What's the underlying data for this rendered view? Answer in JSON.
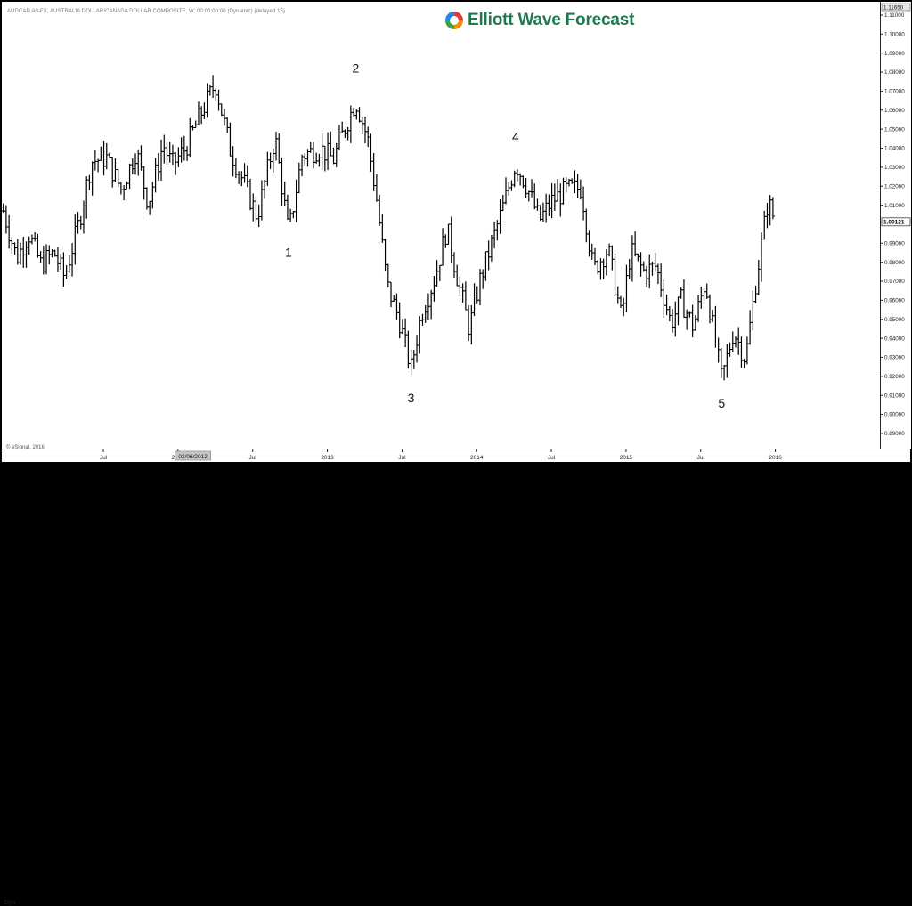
{
  "header": {
    "symbol_line": "AUDCAD A0-FX, AUSTRALIA DOLLAR/CANADA DOLLAR COMPOSITE, W, 00:00:00:00 (Dynamic) (delayed 15)",
    "logo_text": "Elliott Wave Forecast",
    "logo_colors": [
      "#e53935",
      "#fb8c00",
      "#43a047",
      "#1e88e5"
    ]
  },
  "footer": {
    "copyright": "© eSignal, 2016",
    "dyn_label": "Dyn"
  },
  "chart_data": {
    "type": "ohlc",
    "interval": "weekly",
    "series_color": "#000000",
    "y_tick_labels": [
      "1.11000",
      "1.10000",
      "1.09000",
      "1.08000",
      "1.07000",
      "1.06000",
      "1.05000",
      "1.04000",
      "1.03000",
      "1.02000",
      "1.01000",
      "0.99000",
      "0.98000",
      "0.97000",
      "0.96000",
      "0.95000",
      "0.94000",
      "0.93000",
      "0.92000",
      "0.91000",
      "0.90000",
      "0.89000"
    ],
    "ylim": [
      0.882,
      1.117
    ],
    "top_label": "1.11650",
    "last_price": 1.00121,
    "last_price_label": "1.00121",
    "x_ticks": [
      {
        "label": "Jul",
        "value": 2011.5
      },
      {
        "label": "2012",
        "value": 2012.0
      },
      {
        "label": "Jul",
        "value": 2012.5
      },
      {
        "label": "2013",
        "value": 2013.0
      },
      {
        "label": "Jul",
        "value": 2013.5
      },
      {
        "label": "2014",
        "value": 2014.0
      },
      {
        "label": "Jul",
        "value": 2014.5
      },
      {
        "label": "2015",
        "value": 2015.0
      },
      {
        "label": "Jul",
        "value": 2015.5
      },
      {
        "label": "2016",
        "value": 2016.0
      }
    ],
    "x_cursor_label": "02/06/2012",
    "x_cursor_value": 2012.1,
    "xlim": [
      2010.82,
      2016.7
    ],
    "wave_labels": [
      {
        "text": "1",
        "x": 2012.74,
        "price": 0.9895,
        "position": "below"
      },
      {
        "text": "2",
        "x": 2013.19,
        "price": 1.076,
        "position": "above"
      },
      {
        "text": "3",
        "x": 2013.56,
        "price": 0.913,
        "position": "below"
      },
      {
        "text": "4",
        "x": 2014.26,
        "price": 1.04,
        "position": "above"
      },
      {
        "text": "5",
        "x": 2015.64,
        "price": 0.91,
        "position": "below"
      }
    ],
    "anchors": [
      [
        2010.83,
        1.007
      ],
      [
        2010.92,
        0.982
      ],
      [
        2011.0,
        0.995
      ],
      [
        2011.08,
        0.979
      ],
      [
        2011.17,
        0.985
      ],
      [
        2011.24,
        0.972
      ],
      [
        2011.34,
        1.002
      ],
      [
        2011.42,
        1.033
      ],
      [
        2011.52,
        1.035
      ],
      [
        2011.62,
        1.018
      ],
      [
        2011.72,
        1.039
      ],
      [
        2011.8,
        1.011
      ],
      [
        2011.9,
        1.042
      ],
      [
        2011.96,
        1.031
      ],
      [
        2012.05,
        1.04
      ],
      [
        2012.17,
        1.061
      ],
      [
        2012.25,
        1.074
      ],
      [
        2012.35,
        1.039
      ],
      [
        2012.45,
        1.02
      ],
      [
        2012.53,
        1.004
      ],
      [
        2012.65,
        1.046
      ],
      [
        2012.74,
        0.995
      ],
      [
        2012.83,
        1.036
      ],
      [
        2012.95,
        1.04
      ],
      [
        2013.04,
        1.034
      ],
      [
        2013.1,
        1.047
      ],
      [
        2013.19,
        1.065
      ],
      [
        2013.27,
        1.045
      ],
      [
        2013.33,
        1.013
      ],
      [
        2013.4,
        0.968
      ],
      [
        2013.48,
        0.95
      ],
      [
        2013.56,
        0.924
      ],
      [
        2013.63,
        0.953
      ],
      [
        2013.72,
        0.972
      ],
      [
        2013.8,
        0.998
      ],
      [
        2013.87,
        0.972
      ],
      [
        2013.95,
        0.945
      ],
      [
        2014.02,
        0.97
      ],
      [
        2014.1,
        0.99
      ],
      [
        2014.18,
        1.01
      ],
      [
        2014.26,
        1.032
      ],
      [
        2014.33,
        1.021
      ],
      [
        2014.42,
        1.002
      ],
      [
        2014.5,
        1.012
      ],
      [
        2014.6,
        1.018
      ],
      [
        2014.7,
        1.019
      ],
      [
        2014.78,
        0.976
      ],
      [
        2014.88,
        0.987
      ],
      [
        2014.97,
        0.95
      ],
      [
        2015.03,
        0.986
      ],
      [
        2015.12,
        0.975
      ],
      [
        2015.2,
        0.978
      ],
      [
        2015.3,
        0.948
      ],
      [
        2015.37,
        0.96
      ],
      [
        2015.45,
        0.946
      ],
      [
        2015.53,
        0.97
      ],
      [
        2015.64,
        0.918
      ],
      [
        2015.72,
        0.944
      ],
      [
        2015.8,
        0.929
      ],
      [
        2015.87,
        0.97
      ],
      [
        2015.95,
        1.012
      ],
      [
        2016.0,
        1.0012
      ]
    ]
  }
}
